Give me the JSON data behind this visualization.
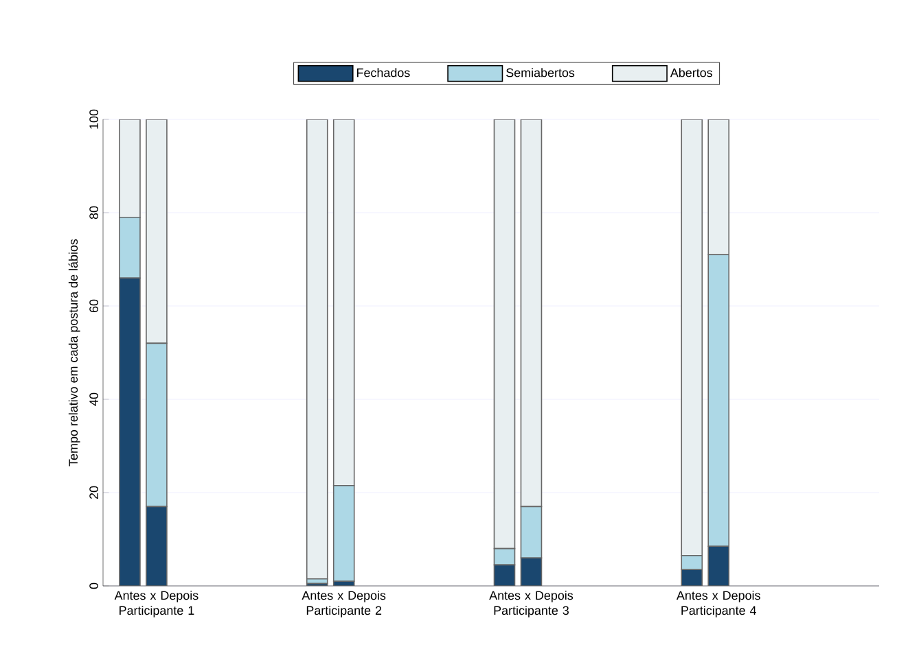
{
  "chart_data": {
    "type": "bar",
    "stacked": true,
    "ylabel": "Tempo relativo em cada postura de lábios",
    "categories": [
      null,
      "Antes x Depois Participante 1",
      null,
      null,
      null,
      null,
      null,
      null,
      "Antes x Depois Participante 2",
      null,
      null,
      null,
      null,
      null,
      null,
      "Antes x Depois Participante 3",
      null,
      null,
      null,
      null,
      null,
      null,
      "Antes x Depois Participante 4",
      null,
      null,
      null,
      null,
      null
    ],
    "series": [
      {
        "name": "Fechados",
        "color": "#1a476f",
        "values": [
          66,
          17,
          null,
          null,
          null,
          null,
          null,
          0.5,
          1,
          null,
          null,
          null,
          null,
          null,
          4.5,
          6,
          null,
          null,
          null,
          null,
          null,
          3.5,
          8.5,
          null,
          null,
          null,
          null,
          null
        ]
      },
      {
        "name": "Semiabertos",
        "color": "#add8e6",
        "values": [
          13,
          35,
          null,
          null,
          null,
          null,
          null,
          1,
          20.5,
          null,
          null,
          null,
          null,
          null,
          3.5,
          11,
          null,
          null,
          null,
          null,
          null,
          3,
          62.5,
          null,
          null,
          null,
          null,
          null
        ]
      },
      {
        "name": "Abertos",
        "color": "#e8eff1",
        "values": [
          21,
          48,
          null,
          null,
          null,
          null,
          null,
          98.5,
          78.5,
          null,
          null,
          null,
          null,
          null,
          92,
          83,
          null,
          null,
          null,
          null,
          null,
          93.5,
          29,
          null,
          null,
          null,
          null,
          null
        ]
      }
    ],
    "ylim": [
      0,
      100
    ],
    "yticks": [
      0,
      20,
      40,
      60,
      80,
      100
    ],
    "grid": "y",
    "legend": "top"
  }
}
